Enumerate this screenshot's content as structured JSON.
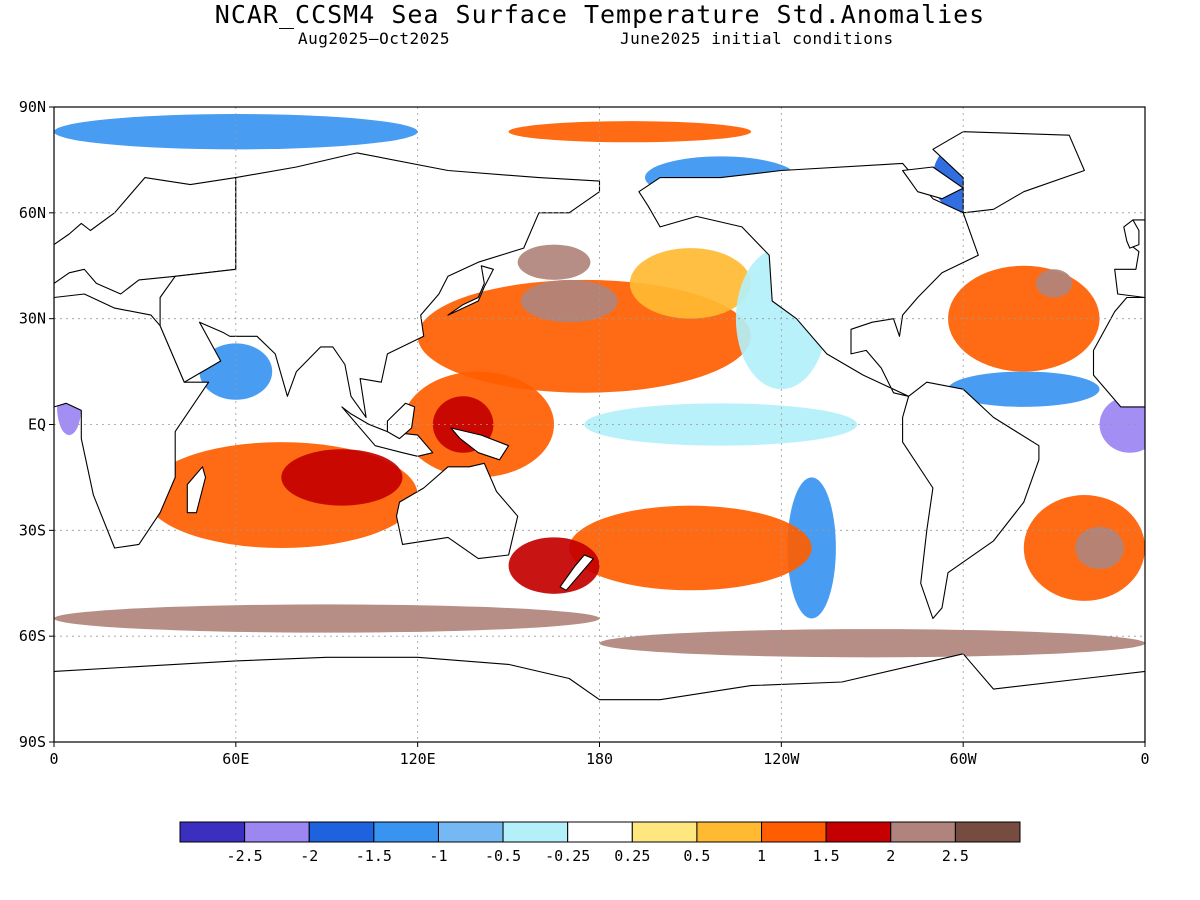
{
  "title": "NCAR_CCSM4 Sea Surface Temperature Std.Anomalies",
  "subtitle_period": "Aug2025—Oct2025",
  "subtitle_init": "June2025 initial conditions",
  "map": {
    "lat_labels": [
      "90N",
      "60N",
      "30N",
      "EQ",
      "30S",
      "60S",
      "90S"
    ],
    "lon_labels": [
      "0",
      "60E",
      "120E",
      "180",
      "120W",
      "60W",
      "0"
    ],
    "colors": {
      "land": "#ffffff",
      "coast": "#000000",
      "ocean_base": "#ffffff"
    },
    "anomaly_regions": [
      {
        "level": 1.5,
        "lon": 175,
        "lat": 25,
        "rlon": 55,
        "rlat": 16
      },
      {
        "level": 2.5,
        "lon": 170,
        "lat": 35,
        "rlon": 16,
        "rlat": 6
      },
      {
        "level": 2.5,
        "lon": 165,
        "lat": 46,
        "rlon": 12,
        "rlat": 5
      },
      {
        "level": 1.0,
        "lon": 210,
        "lat": 40,
        "rlon": 20,
        "rlat": 10
      },
      {
        "level": 1.5,
        "lon": 140,
        "lat": 0,
        "rlon": 25,
        "rlat": 15
      },
      {
        "level": 2.0,
        "lon": 135,
        "lat": 0,
        "rlon": 10,
        "rlat": 8
      },
      {
        "level": -0.5,
        "lon": 220,
        "lat": 0,
        "rlon": 45,
        "rlat": 6
      },
      {
        "level": -0.5,
        "lon": 240,
        "lat": 30,
        "rlon": 15,
        "rlat": 20
      },
      {
        "level": -1.0,
        "lon": 250,
        "lat": -35,
        "rlon": 8,
        "rlat": 20
      },
      {
        "level": 1.5,
        "lon": 75,
        "lat": -20,
        "rlon": 45,
        "rlat": 15
      },
      {
        "level": 2.0,
        "lon": 95,
        "lat": -15,
        "rlon": 20,
        "rlat": 8
      },
      {
        "level": -1.0,
        "lon": 60,
        "lat": 15,
        "rlon": 12,
        "rlat": 8
      },
      {
        "level": 1.5,
        "lon": 320,
        "lat": 30,
        "rlon": 25,
        "rlat": 15
      },
      {
        "level": 2.5,
        "lon": 330,
        "lat": 40,
        "rlon": 6,
        "rlat": 4
      },
      {
        "level": -1.0,
        "lon": 320,
        "lat": 10,
        "rlon": 25,
        "rlat": 5
      },
      {
        "level": -2.0,
        "lon": 355,
        "lat": 0,
        "rlon": 10,
        "rlat": 8
      },
      {
        "level": 1.5,
        "lon": 340,
        "lat": -35,
        "rlon": 20,
        "rlat": 15
      },
      {
        "level": 2.5,
        "lon": 345,
        "lat": -35,
        "rlon": 8,
        "rlat": 6
      },
      {
        "level": 1.5,
        "lon": 210,
        "lat": -35,
        "rlon": 40,
        "rlat": 12
      },
      {
        "level": 2.0,
        "lon": 165,
        "lat": -40,
        "rlon": 15,
        "rlat": 8
      },
      {
        "level": 2.5,
        "lon": 90,
        "lat": -55,
        "rlon": 90,
        "rlat": 4
      },
      {
        "level": 2.5,
        "lon": 270,
        "lat": -62,
        "rlon": 90,
        "rlat": 4
      },
      {
        "level": -1.0,
        "lon": 60,
        "lat": 83,
        "rlon": 60,
        "rlat": 5
      },
      {
        "level": 1.5,
        "lon": 190,
        "lat": 83,
        "rlon": 40,
        "rlat": 3
      },
      {
        "level": -1.0,
        "lon": 220,
        "lat": 70,
        "rlon": 25,
        "rlat": 6
      },
      {
        "level": -2.0,
        "lon": 5,
        "lat": 5,
        "rlon": 4,
        "rlat": 8
      },
      {
        "level": -1.5,
        "lon": 300,
        "lat": 70,
        "rlon": 10,
        "rlat": 10
      }
    ]
  },
  "colorbar": {
    "colors": [
      "#3a2fbe",
      "#9b86f2",
      "#1f62e0",
      "#3894f0",
      "#74b8f4",
      "#b3f0fa",
      "#ffffff",
      "#ffe77f",
      "#ffba32",
      "#ff5e00",
      "#c40000",
      "#b0847c",
      "#774c40"
    ],
    "labels": [
      "-2.5",
      "-2",
      "-1.5",
      "-1",
      "-0.5",
      "-0.25",
      "0.25",
      "0.5",
      "1",
      "1.5",
      "2",
      "2.5"
    ]
  }
}
